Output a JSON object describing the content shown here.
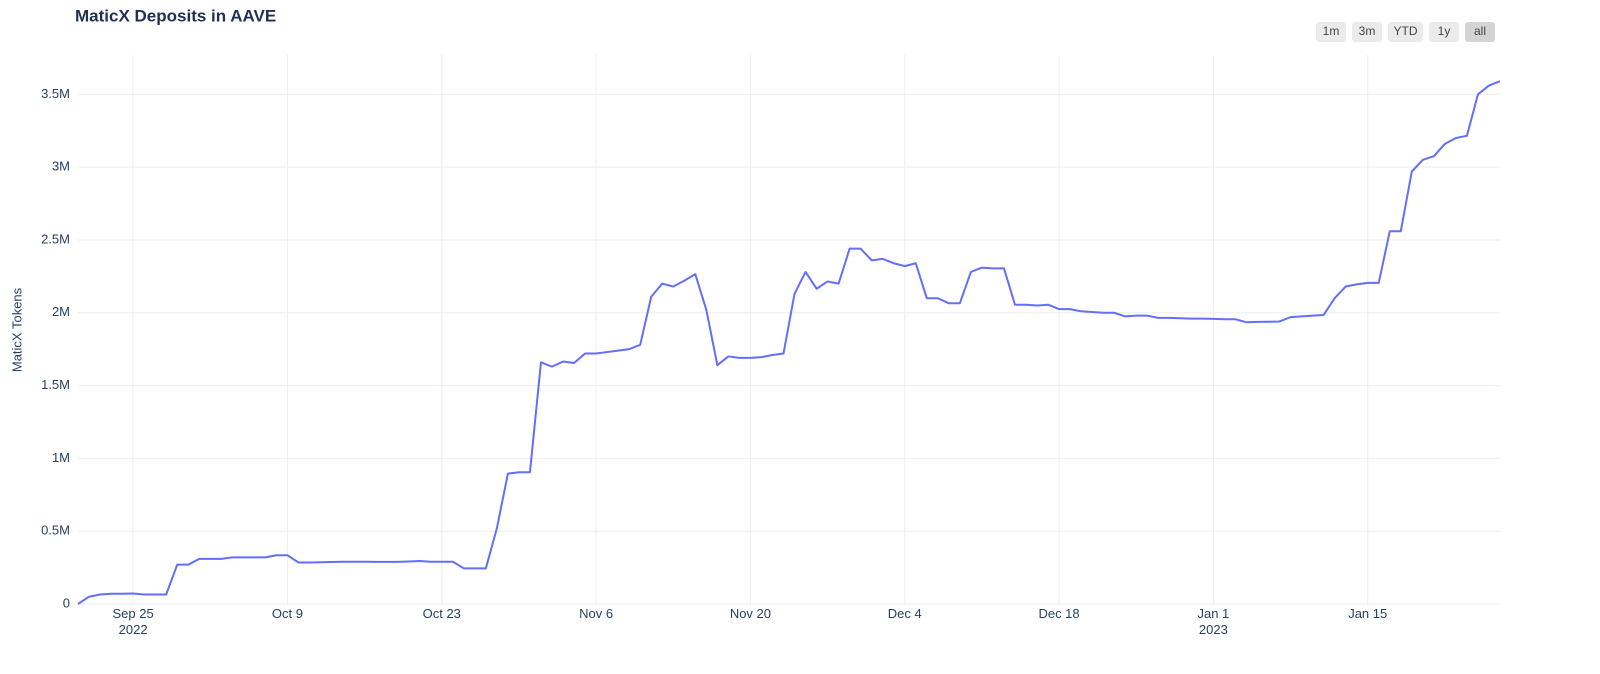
{
  "chart_data": {
    "type": "line",
    "title": "MaticX Deposits in AAVE",
    "y_label": "MaticX Tokens",
    "color": "#636efa",
    "grid": true,
    "buttons": [
      "1m",
      "3m",
      "YTD",
      "1y",
      "all"
    ],
    "active_button": 4,
    "xlim": [
      "2022-09-20",
      "2023-01-27"
    ],
    "ylim": [
      0,
      3770000
    ],
    "yticks": [
      0,
      {
        "value": 500000,
        "label": "0.5M"
      },
      {
        "value": 1000000,
        "label": "1M"
      },
      {
        "value": 1500000,
        "label": "1.5M"
      },
      {
        "value": 2000000,
        "label": "2M"
      },
      {
        "value": 2500000,
        "label": "2.5M"
      },
      {
        "value": 3000000,
        "label": "3M"
      },
      {
        "value": 3500000,
        "label": "3.5M"
      }
    ],
    "xticks": [
      {
        "value": "2022-09-25",
        "label": "Sep 25\n2022"
      },
      {
        "value": "2022-10-09",
        "label": "Oct 9"
      },
      {
        "value": "2022-10-23",
        "label": "Oct 23"
      },
      {
        "value": "2022-11-06",
        "label": "Nov 6"
      },
      {
        "value": "2022-11-20",
        "label": "Nov 20"
      },
      {
        "value": "2022-12-04",
        "label": "Dec 4"
      },
      {
        "value": "2022-12-18",
        "label": "Dec 18"
      },
      {
        "value": "2023-01-01",
        "label": "Jan 1\n2023"
      },
      {
        "value": "2023-01-15",
        "label": "Jan 15"
      }
    ],
    "x": [
      "2022-09-20",
      "2022-09-21",
      "2022-09-22",
      "2022-09-23",
      "2022-09-24",
      "2022-09-25",
      "2022-09-26",
      "2022-09-27",
      "2022-09-28",
      "2022-09-29",
      "2022-09-30",
      "2022-10-01",
      "2022-10-02",
      "2022-10-03",
      "2022-10-04",
      "2022-10-05",
      "2022-10-06",
      "2022-10-07",
      "2022-10-08",
      "2022-10-09",
      "2022-10-10",
      "2022-10-11",
      "2022-10-12",
      "2022-10-13",
      "2022-10-14",
      "2022-10-15",
      "2022-10-16",
      "2022-10-17",
      "2022-10-18",
      "2022-10-19",
      "2022-10-20",
      "2022-10-21",
      "2022-10-22",
      "2022-10-23",
      "2022-10-24",
      "2022-10-25",
      "2022-10-26",
      "2022-10-27",
      "2022-10-28",
      "2022-10-29",
      "2022-10-30",
      "2022-10-31",
      "2022-11-01",
      "2022-11-02",
      "2022-11-03",
      "2022-11-04",
      "2022-11-05",
      "2022-11-06",
      "2022-11-07",
      "2022-11-08",
      "2022-11-09",
      "2022-11-10",
      "2022-11-11",
      "2022-11-12",
      "2022-11-13",
      "2022-11-14",
      "2022-11-15",
      "2022-11-16",
      "2022-11-17",
      "2022-11-18",
      "2022-11-19",
      "2022-11-20",
      "2022-11-21",
      "2022-11-22",
      "2022-11-23",
      "2022-11-24",
      "2022-11-25",
      "2022-11-26",
      "2022-11-27",
      "2022-11-28",
      "2022-11-29",
      "2022-11-30",
      "2022-12-01",
      "2022-12-02",
      "2022-12-03",
      "2022-12-04",
      "2022-12-05",
      "2022-12-06",
      "2022-12-07",
      "2022-12-08",
      "2022-12-09",
      "2022-12-10",
      "2022-12-11",
      "2022-12-12",
      "2022-12-13",
      "2022-12-14",
      "2022-12-15",
      "2022-12-16",
      "2022-12-17",
      "2022-12-18",
      "2022-12-19",
      "2022-12-20",
      "2022-12-21",
      "2022-12-22",
      "2022-12-23",
      "2022-12-24",
      "2022-12-25",
      "2022-12-26",
      "2022-12-27",
      "2022-12-28",
      "2022-12-29",
      "2022-12-30",
      "2022-12-31",
      "2023-01-01",
      "2023-01-02",
      "2023-01-03",
      "2023-01-04",
      "2023-01-05",
      "2023-01-06",
      "2023-01-07",
      "2023-01-08",
      "2023-01-09",
      "2023-01-10",
      "2023-01-11",
      "2023-01-12",
      "2023-01-13",
      "2023-01-14",
      "2023-01-15",
      "2023-01-16",
      "2023-01-17",
      "2023-01-18",
      "2023-01-19",
      "2023-01-20",
      "2023-01-21",
      "2023-01-22",
      "2023-01-23",
      "2023-01-24",
      "2023-01-25",
      "2023-01-26",
      "2023-01-27"
    ],
    "values": [
      0,
      50000,
      65000,
      70000,
      70000,
      72000,
      65000,
      65000,
      65000,
      270000,
      270000,
      310000,
      310000,
      310000,
      320000,
      320000,
      320000,
      320000,
      335000,
      335000,
      285000,
      285000,
      287000,
      288000,
      290000,
      290000,
      290000,
      289000,
      289000,
      289000,
      292000,
      295000,
      290000,
      290000,
      290000,
      245000,
      245000,
      245000,
      520000,
      895000,
      905000,
      905000,
      1660000,
      1630000,
      1665000,
      1655000,
      1720000,
      1720000,
      1730000,
      1740000,
      1750000,
      1780000,
      2110000,
      2200000,
      2180000,
      2220000,
      2265000,
      2020000,
      1640000,
      1700000,
      1690000,
      1690000,
      1695000,
      1710000,
      1720000,
      2130000,
      2280000,
      2165000,
      2215000,
      2200000,
      2440000,
      2440000,
      2360000,
      2370000,
      2340000,
      2320000,
      2340000,
      2100000,
      2100000,
      2065000,
      2065000,
      2280000,
      2310000,
      2305000,
      2305000,
      2055000,
      2055000,
      2050000,
      2055000,
      2025000,
      2025000,
      2010000,
      2005000,
      2000000,
      2000000,
      1975000,
      1980000,
      1980000,
      1965000,
      1965000,
      1962000,
      1960000,
      1960000,
      1958000,
      1955000,
      1955000,
      1935000,
      1937000,
      1938000,
      1940000,
      1970000,
      1975000,
      1980000,
      1985000,
      2100000,
      2180000,
      2195000,
      2205000,
      2205000,
      2560000,
      2560000,
      2970000,
      3050000,
      3075000,
      3160000,
      3200000,
      3215000,
      3500000,
      3560000,
      3590000
    ]
  }
}
